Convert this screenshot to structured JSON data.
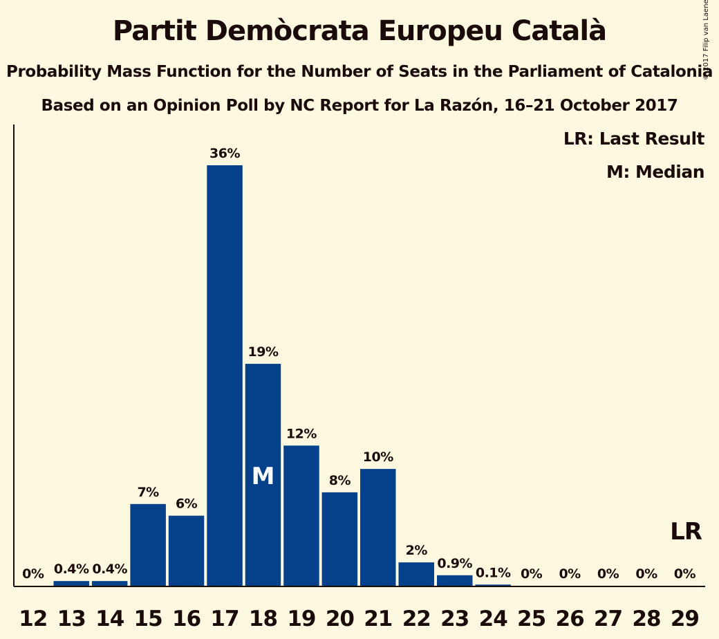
{
  "title": "Partit Demòcrata Europeu Català",
  "subtitle1": "Probability Mass Function for the Number of Seats in the Parliament of Catalonia",
  "subtitle2": "Based on an Opinion Poll by NC Report for La Razón, 16–21 October 2017",
  "copyright": "© 2017 Filip van Laenen",
  "colors": {
    "bar": "#05418a",
    "background": "#fdf9e1",
    "text": "#1a0a0a"
  },
  "chart_data": {
    "type": "bar",
    "categories": [
      "12",
      "13",
      "14",
      "15",
      "16",
      "17",
      "18",
      "19",
      "20",
      "21",
      "22",
      "23",
      "24",
      "25",
      "26",
      "27",
      "28",
      "29"
    ],
    "values": [
      0,
      0.4,
      0.4,
      7,
      6,
      36,
      19,
      12,
      8,
      10,
      2,
      0.9,
      0.1,
      0,
      0,
      0,
      0,
      0
    ],
    "data_labels": [
      "0%",
      "0.4%",
      "0.4%",
      "7%",
      "6%",
      "36%",
      "19%",
      "12%",
      "8%",
      "10%",
      "2%",
      "0.9%",
      "0.1%",
      "0%",
      "0%",
      "0%",
      "0%",
      "0%"
    ],
    "ylim": [
      0,
      36
    ],
    "median_category": "18",
    "median_marker": "M",
    "last_result_category": "29",
    "last_result_marker": "LR",
    "legend": [
      "LR: Last Result",
      "M: Median"
    ],
    "legend_position": "top-right"
  }
}
